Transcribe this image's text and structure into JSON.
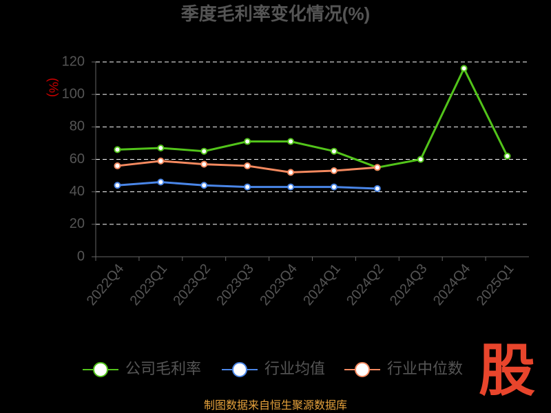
{
  "chart_data": {
    "type": "line",
    "title": "季度毛利率变化情况(%)",
    "y_label": "(%)",
    "categories": [
      "2022Q4",
      "2023Q1",
      "2023Q2",
      "2023Q3",
      "2023Q4",
      "2024Q1",
      "2024Q2",
      "2024Q3",
      "2024Q4",
      "2025Q1"
    ],
    "series": [
      {
        "name": "公司毛利率",
        "color": "#52c41a",
        "values": [
          66,
          67,
          65,
          71,
          71,
          65,
          55,
          60,
          116,
          62
        ]
      },
      {
        "name": "行业均值",
        "color": "#4a86e8",
        "values": [
          44,
          46,
          44,
          43,
          43,
          43,
          42,
          null,
          null,
          null
        ]
      },
      {
        "name": "行业中位数",
        "color": "#f4895f",
        "values": [
          56,
          59,
          57,
          56,
          52,
          53,
          55,
          null,
          null,
          null
        ]
      }
    ],
    "ylim": [
      0,
      120
    ],
    "yticks": [
      0,
      20,
      40,
      60,
      80,
      100,
      120
    ],
    "grid": true,
    "legend": "bottom",
    "source": "制图数据来自恒生聚源数据库",
    "logo": "股"
  }
}
